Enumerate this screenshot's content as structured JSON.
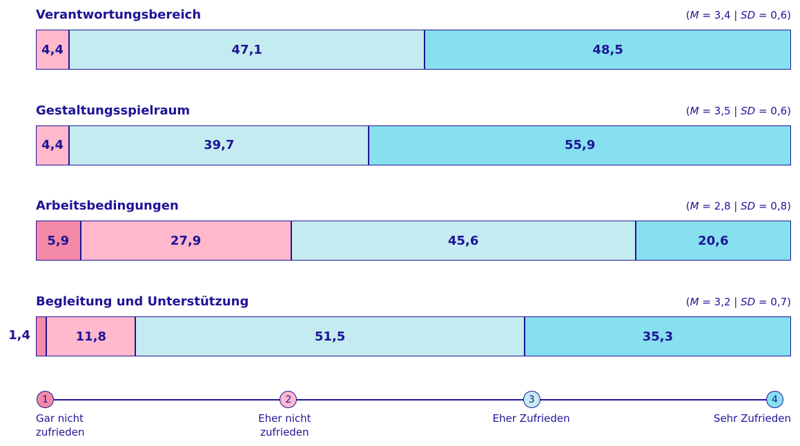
{
  "chart_data": {
    "type": "stacked_bar",
    "orientation": "horizontal",
    "categories": [
      "Verantwortungsbereich",
      "Gestaltungsspielraum",
      "Arbeitsbedingungen",
      "Begleitung und Unterstützung"
    ],
    "stats": [
      [
        "(",
        "M",
        " = 3,4 | ",
        "SD",
        " = 0,6)"
      ],
      [
        "(",
        "M",
        " = 3,5 | ",
        "SD",
        " = 0,6)"
      ],
      [
        "(",
        "M",
        " = 2,8 | ",
        "SD",
        " = 0,8)"
      ],
      [
        "(",
        "M",
        " = 3,2 | ",
        "SD",
        " = 0,7)"
      ]
    ],
    "xlim": [
      0,
      100
    ],
    "border_color": "#1e1496",
    "scale_points": [
      1,
      2,
      3,
      4
    ],
    "series": [
      {
        "name": "Gar nicht zufrieden",
        "color": "#f48aa8",
        "values": [
          null,
          null,
          5.9,
          1.4
        ],
        "value_labels": [
          null,
          null,
          "5,9",
          "1,4"
        ]
      },
      {
        "name": "Eher nicht zufrieden",
        "color": "#ffb8cc",
        "values": [
          4.4,
          4.4,
          27.9,
          11.8
        ],
        "value_labels": [
          "4,4",
          "4,4",
          "27,9",
          "11,8"
        ]
      },
      {
        "name": "Eher Zufrieden",
        "color": "#c4ecf0",
        "values": [
          47.1,
          39.7,
          45.6,
          51.5
        ],
        "value_labels": [
          "47,1",
          "39,7",
          "45,6",
          "51,5"
        ]
      },
      {
        "name": "Sehr Zufrieden",
        "color": "#86e0ef",
        "values": [
          48.5,
          55.9,
          20.6,
          35.3
        ],
        "value_labels": [
          "48,5",
          "55,9",
          "20,6",
          "35,3"
        ]
      }
    ]
  }
}
